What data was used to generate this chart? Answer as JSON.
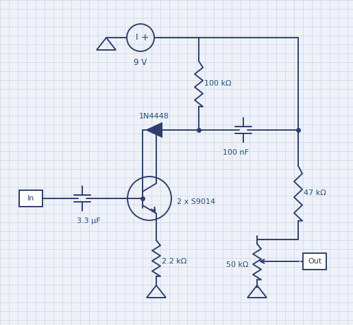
{
  "bg_color": "#eef1f8",
  "grid_color": "#cdd3e0",
  "line_color": "#2d3e6d",
  "label_color": "#1a5276",
  "text_color": "#2d3e6d",
  "figsize": [
    5.15,
    4.75
  ],
  "dpi": 100,
  "labels": {
    "voltage": "9 V",
    "r1": "100 kΩ",
    "r2": "47 kΩ",
    "r3": "2.2 kΩ",
    "r4": "50 kΩ",
    "c1": "3.3 μF",
    "c2": "100 nF",
    "diode": "1N4448",
    "transistor": "2 x S9014",
    "in_label": "In",
    "out_label": "Out",
    "voltage_label": "9 V"
  }
}
